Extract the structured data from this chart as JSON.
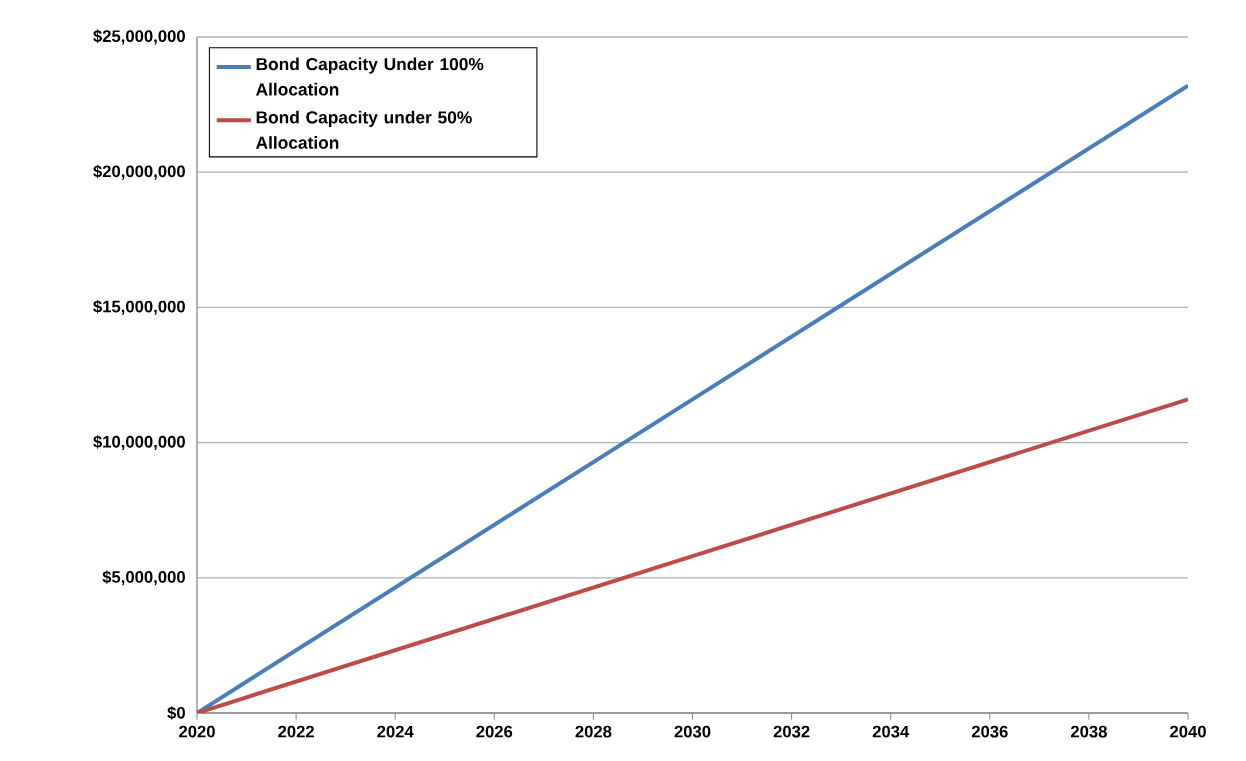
{
  "chart_data": {
    "type": "line",
    "x": [
      2020,
      2030,
      2040
    ],
    "series": [
      {
        "name": "Bond Capacity Under 100% Allocation",
        "color": "#4a7ebb",
        "values": [
          0,
          11600000,
          23200000
        ]
      },
      {
        "name": "Bond Capacity under 50% Allocation",
        "color": "#be4b48",
        "values": [
          0,
          5800000,
          11600000
        ]
      }
    ],
    "xlim": [
      2020,
      2040
    ],
    "xticks": [
      2020,
      2022,
      2024,
      2026,
      2028,
      2030,
      2032,
      2034,
      2036,
      2038,
      2040
    ],
    "ylim": [
      0,
      25000000
    ],
    "yticks": [
      {
        "value": 0,
        "label": "$0"
      },
      {
        "value": 5000000,
        "label": "$5,000,000"
      },
      {
        "value": 10000000,
        "label": "$10,000,000"
      },
      {
        "value": 15000000,
        "label": "$15,000,000"
      },
      {
        "value": 20000000,
        "label": "$20,000,000"
      },
      {
        "value": 25000000,
        "label": "$25,000,000"
      }
    ],
    "grid": "y",
    "legend": "top left",
    "marker": "none",
    "line_style": "solid"
  }
}
